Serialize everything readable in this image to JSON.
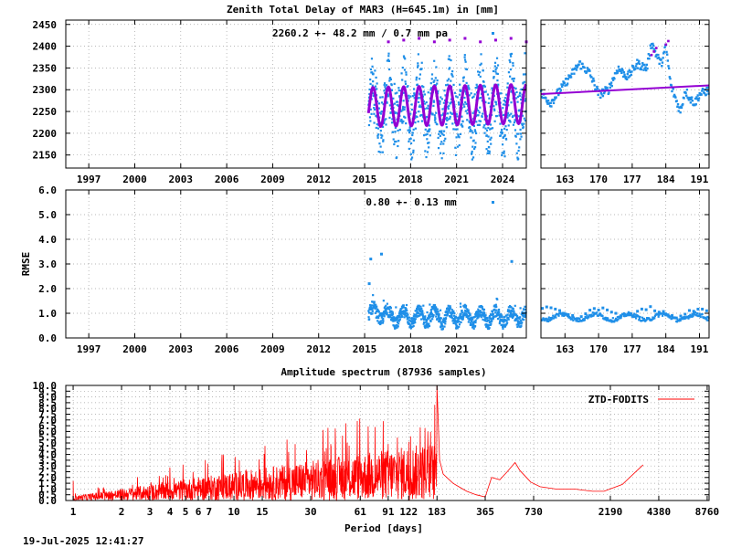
{
  "title": "Zenith Total Delay of MAR3 (H=645.1m) in [mm]",
  "timestamp": "19-Jul-2025 12:41:27",
  "colors": {
    "observations": "#1f8fe8",
    "model": "#9400d3",
    "spectrum": "#ff0000",
    "grid": "#a0a0a0"
  },
  "chart_data": [
    {
      "name": "ztd_timeseries",
      "type": "scatter",
      "title": "Zenith Total Delay of MAR3 (H=645.1m) in [mm]",
      "annotation": "2260.2 +-  48.2 mm /  0.7 mm pa",
      "xlim": [
        1995.5,
        2025.55
      ],
      "ylim": [
        2120,
        2460
      ],
      "x_ticks": [
        1997,
        2000,
        2003,
        2006,
        2009,
        2012,
        2015,
        2018,
        2021,
        2024
      ],
      "y_ticks": [
        2150,
        2200,
        2250,
        2300,
        2350,
        2400,
        2450
      ],
      "data_start": 2015.25,
      "mean": 2260.2,
      "amplitude": 48.2,
      "trend_mm_per_year": 0.7,
      "seasonal_fit_amplitude": 45,
      "obs_spread": [
        2160,
        2390
      ],
      "obs_peak_max": 2420,
      "obs_low_min": 2130
    },
    {
      "name": "ztd_recent_days",
      "type": "scatter",
      "xlim": [
        158,
        193
      ],
      "ylim": [
        2120,
        2460
      ],
      "x_ticks": [
        163,
        170,
        177,
        184,
        191
      ],
      "y_ticks": [
        2150,
        2200,
        2250,
        2300,
        2350,
        2400,
        2450
      ],
      "series": [
        {
          "name": "ZTD",
          "x": [
            158,
            160,
            162,
            164,
            166,
            168,
            170,
            172,
            174,
            176,
            178,
            180,
            181,
            182,
            183,
            184,
            185,
            186,
            187,
            188,
            189,
            190,
            191,
            193
          ],
          "y": [
            2290,
            2270,
            2300,
            2330,
            2360,
            2340,
            2290,
            2300,
            2350,
            2330,
            2360,
            2350,
            2410,
            2380,
            2360,
            2400,
            2310,
            2280,
            2250,
            2300,
            2280,
            2270,
            2290,
            2300
          ]
        },
        {
          "name": "trend",
          "x": [
            158,
            193
          ],
          "y": [
            2290,
            2310
          ]
        }
      ]
    },
    {
      "name": "rmse_timeseries",
      "type": "scatter",
      "ylabel": "RMSE",
      "annotation": "0.80 +-  0.13 mm",
      "xlim": [
        1995.5,
        2025.55
      ],
      "ylim": [
        0,
        6
      ],
      "x_ticks": [
        1997,
        2000,
        2003,
        2006,
        2009,
        2012,
        2015,
        2018,
        2021,
        2024
      ],
      "y_ticks": [
        "0.0",
        "1.0",
        "2.0",
        "3.0",
        "4.0",
        "5.0",
        "6.0"
      ],
      "typical_band": [
        0.6,
        1.1
      ],
      "outliers": [
        {
          "x": 2015.3,
          "y": 2.2
        },
        {
          "x": 2015.4,
          "y": 3.2
        },
        {
          "x": 2016.1,
          "y": 3.4
        },
        {
          "x": 2024.6,
          "y": 3.1
        }
      ]
    },
    {
      "name": "rmse_recent_days",
      "type": "scatter",
      "xlim": [
        158,
        193
      ],
      "ylim": [
        0,
        6
      ],
      "x_ticks": [
        163,
        170,
        177,
        184,
        191
      ],
      "y_ticks": [
        "0.0",
        "1.0",
        "2.0",
        "3.0",
        "4.0",
        "5.0",
        "6.0"
      ],
      "typical_band": [
        0.7,
        1.2
      ]
    },
    {
      "name": "amplitude_spectrum",
      "type": "line",
      "title": "Amplitude spectrum (87936 samples)",
      "xlabel": "Period [days]",
      "xscale": "log",
      "xlim": [
        0.9,
        9000
      ],
      "ylim": [
        0,
        10
      ],
      "x_ticks": [
        1,
        2,
        3,
        4,
        5,
        6,
        7,
        10,
        15,
        30,
        61,
        91,
        122,
        183,
        365,
        730,
        2190,
        4380,
        8760
      ],
      "y_ticks": [
        "0.0",
        "0.5",
        "1.0",
        "1.5",
        "2.0",
        "2.5",
        "3.0",
        "3.5",
        "4.0",
        "4.5",
        "5.0",
        "5.5",
        "6.0",
        "6.5",
        "7.0",
        "7.5",
        "8.0",
        "8.5",
        "9.0",
        "9.5",
        "10.0"
      ],
      "legend": {
        "label": "ZTD-FODITS",
        "position": "top-right"
      },
      "series": [
        {
          "name": "ZTD-FODITS",
          "x": [
            183,
            190,
            200,
            230,
            250,
            280,
            320,
            365,
            400,
            450,
            500,
            560,
            600,
            700,
            800,
            1000,
            1300,
            1700,
            2000,
            2600,
            3500
          ],
          "y": [
            10.0,
            3.5,
            2.3,
            1.5,
            1.2,
            0.8,
            0.5,
            0.3,
            2.0,
            1.8,
            2.5,
            3.3,
            2.6,
            1.6,
            1.2,
            1.0,
            1.0,
            0.8,
            0.8,
            1.4,
            3.1
          ]
        }
      ],
      "peaks": [
        {
          "x": 183,
          "y": 10.0
        },
        {
          "x": 122,
          "y": 5.1
        },
        {
          "x": 91,
          "y": 4.9
        },
        {
          "x": 40,
          "y": 4.9
        },
        {
          "x": 24,
          "y": 4.9
        },
        {
          "x": 1,
          "y": 1.7
        }
      ]
    }
  ]
}
